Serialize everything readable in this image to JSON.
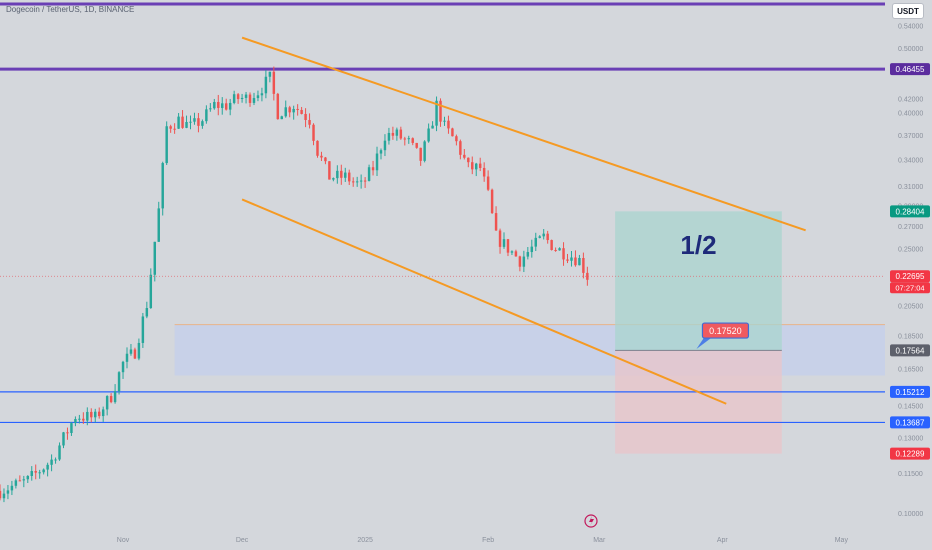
{
  "header": {
    "symbol_title": "Dogecoin / TetherUS, 1D, BINANCE",
    "currency": "USDT"
  },
  "colors": {
    "background": "#d4d7dc",
    "up_candle": "#26a69a",
    "down_candle": "#ef5350",
    "channel": "#f59a23",
    "resistance": "#6a3fb5",
    "support": "#2962ff",
    "target_zone": "#a9d4cf",
    "stop_zone": "#e9c4c9",
    "demand_zone": "#c6d0ea"
  },
  "chart_data": {
    "type": "candlestick",
    "symbol": "DOGE/USDT",
    "timeframe": "1D",
    "exchange": "BINANCE",
    "x_tick_labels": [
      "Nov",
      "Dec",
      "2025",
      "Feb",
      "Mar",
      "Apr",
      "May"
    ],
    "x_tick_dates": [
      "2024-11-01",
      "2024-12-01",
      "2025-01-01",
      "2025-02-01",
      "2025-03-01",
      "2025-04-01",
      "2025-05-01"
    ],
    "x_range": [
      "2024-10-01",
      "2025-05-12"
    ],
    "y_scale": "log",
    "y_range": [
      0.095,
      0.59
    ],
    "y_tick_values": [
      0.1,
      0.115,
      0.13,
      0.145,
      0.165,
      0.185,
      0.205,
      0.23,
      0.25,
      0.27,
      0.29,
      0.31,
      0.34,
      0.37,
      0.4,
      0.42,
      0.5,
      0.54
    ],
    "y_tick_labels": [
      "0.10000",
      "0.11500",
      "0.13000",
      "0.14500",
      "0.16500",
      "0.18500",
      "0.20500",
      "0.23000",
      "0.25000",
      "0.27000",
      "0.29000",
      "0.31000",
      "0.34000",
      "0.37000",
      "0.40000",
      "0.42000",
      "0.50000",
      "0.54000"
    ],
    "grid": false,
    "legend": "none",
    "trend": [
      [
        "2024-10-01",
        0.108
      ],
      [
        "2024-10-08",
        0.112
      ],
      [
        "2024-10-14",
        0.12
      ],
      [
        "2024-10-20",
        0.14
      ],
      [
        "2024-10-25",
        0.139
      ],
      [
        "2024-10-29",
        0.15
      ],
      [
        "2024-11-01",
        0.168
      ],
      [
        "2024-11-04",
        0.175
      ],
      [
        "2024-11-07",
        0.206
      ],
      [
        "2024-11-10",
        0.285
      ],
      [
        "2024-11-12",
        0.38
      ],
      [
        "2024-11-15",
        0.39
      ],
      [
        "2024-11-18",
        0.38
      ],
      [
        "2024-11-21",
        0.39
      ],
      [
        "2024-11-24",
        0.41
      ],
      [
        "2024-11-27",
        0.41
      ],
      [
        "2024-11-30",
        0.42
      ],
      [
        "2024-12-02",
        0.42
      ],
      [
        "2024-12-05",
        0.43
      ],
      [
        "2024-12-08",
        0.45
      ],
      [
        "2024-12-10",
        0.4
      ],
      [
        "2024-12-14",
        0.41
      ],
      [
        "2024-12-18",
        0.39
      ],
      [
        "2024-12-20",
        0.35
      ],
      [
        "2024-12-23",
        0.32
      ],
      [
        "2024-12-27",
        0.32
      ],
      [
        "2024-12-31",
        0.31
      ],
      [
        "2025-01-03",
        0.33
      ],
      [
        "2025-01-06",
        0.37
      ],
      [
        "2025-01-09",
        0.37
      ],
      [
        "2025-01-12",
        0.36
      ],
      [
        "2025-01-15",
        0.34
      ],
      [
        "2025-01-17",
        0.37
      ],
      [
        "2025-01-19",
        0.41
      ],
      [
        "2025-01-21",
        0.38
      ],
      [
        "2025-01-24",
        0.36
      ],
      [
        "2025-01-27",
        0.33
      ],
      [
        "2025-01-30",
        0.33
      ],
      [
        "2025-02-01",
        0.3
      ],
      [
        "2025-02-03",
        0.26
      ],
      [
        "2025-02-06",
        0.25
      ],
      [
        "2025-02-09",
        0.24
      ],
      [
        "2025-02-12",
        0.25
      ],
      [
        "2025-02-15",
        0.26
      ],
      [
        "2025-02-18",
        0.25
      ],
      [
        "2025-02-21",
        0.245
      ],
      [
        "2025-02-24",
        0.24
      ],
      [
        "2025-02-26",
        0.227
      ]
    ],
    "current_price": 0.22695,
    "countdown": "07:27:04",
    "horizontal_levels": [
      {
        "value": 0.46455,
        "label": "0.46455",
        "role": "resistance"
      },
      {
        "value": 0.15212,
        "label": "0.15212",
        "role": "support"
      },
      {
        "value": 0.13687,
        "label": "0.13687",
        "role": "support"
      }
    ],
    "channel_lines": [
      {
        "from": [
          "2024-12-01",
          0.518
        ],
        "to": [
          "2025-04-22",
          0.266
        ]
      },
      {
        "from": [
          "2024-12-01",
          0.296
        ],
        "to": [
          "2025-04-02",
          0.146
        ]
      }
    ],
    "demand_zone": {
      "from": "2024-11-14",
      "to": "2025-05-12",
      "low": 0.161,
      "high": 0.192
    },
    "position": {
      "entry": 0.17564,
      "target": 0.28404,
      "stop": 0.12289,
      "from": "2025-03-05",
      "to": "2025-04-16",
      "ratio_text": "1/2"
    },
    "callout": {
      "text": "0.17520",
      "date": "2025-03-27",
      "value": 0.1752
    },
    "price_labels": [
      {
        "text": "0.46455",
        "value": 0.46455,
        "color": "#5b2c9e"
      },
      {
        "text": "0.28404",
        "value": 0.28404,
        "color": "#089981"
      },
      {
        "text": "0.22695",
        "value": 0.22695,
        "color": "#f23645"
      },
      {
        "text": "0.17564",
        "value": 0.17564,
        "color": "#5d606b"
      },
      {
        "text": "0.15212",
        "value": 0.15212,
        "color": "#2962ff"
      },
      {
        "text": "0.13687",
        "value": 0.13687,
        "color": "#2962ff"
      },
      {
        "text": "0.12289",
        "value": 0.12289,
        "color": "#f23645"
      }
    ]
  }
}
